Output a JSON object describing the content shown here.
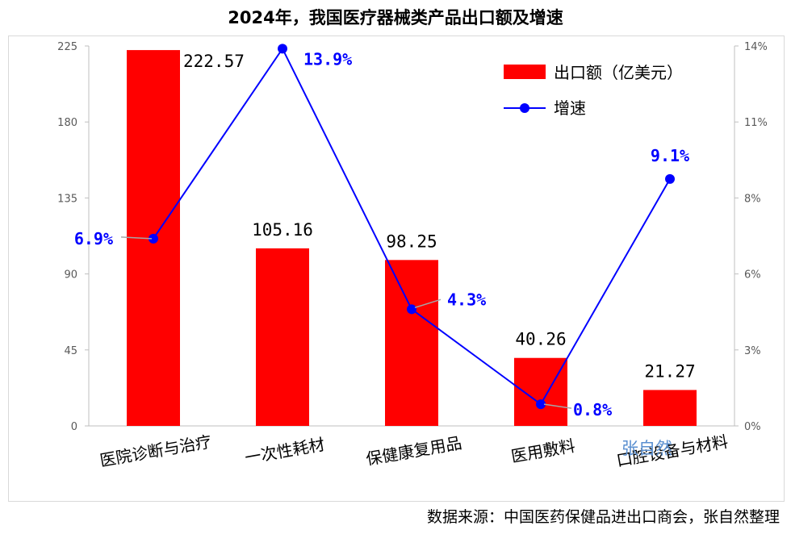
{
  "chart_data": {
    "type": "bar",
    "title": "2024年，我国医疗器械类产品出口额及增速",
    "categories": [
      "医院诊断与治疗",
      "一次性耗材",
      "保健康复用品",
      "医用敷料",
      "口腔设备与材料"
    ],
    "series": [
      {
        "name": "出口额（亿美元）",
        "type": "bar",
        "axis": "left",
        "color": "#ff0000",
        "values": [
          222.57,
          105.16,
          98.25,
          40.26,
          21.27
        ],
        "labels": [
          "222.57",
          "105.16",
          "98.25",
          "40.26",
          "21.27"
        ]
      },
      {
        "name": "增速",
        "type": "line",
        "axis": "right",
        "color": "#0000ff",
        "values": [
          6.9,
          13.9,
          4.3,
          0.8,
          9.1
        ],
        "labels": [
          "6.9%",
          "13.9%",
          "4.3%",
          "0.8%",
          "9.1%"
        ]
      }
    ],
    "y_left": {
      "min": 0,
      "max": 225,
      "ticks": [
        "0",
        "45",
        "90",
        "135",
        "180",
        "225"
      ]
    },
    "y_right": {
      "min": 0,
      "max": 14,
      "ticks": [
        "0%",
        "3%",
        "6%",
        "8%",
        "11%",
        "14%"
      ]
    },
    "legend_position": "top-right",
    "grid": false,
    "source": "数据来源：中国医药保健品进出口商会，张自然整理",
    "watermark": "张自然"
  }
}
